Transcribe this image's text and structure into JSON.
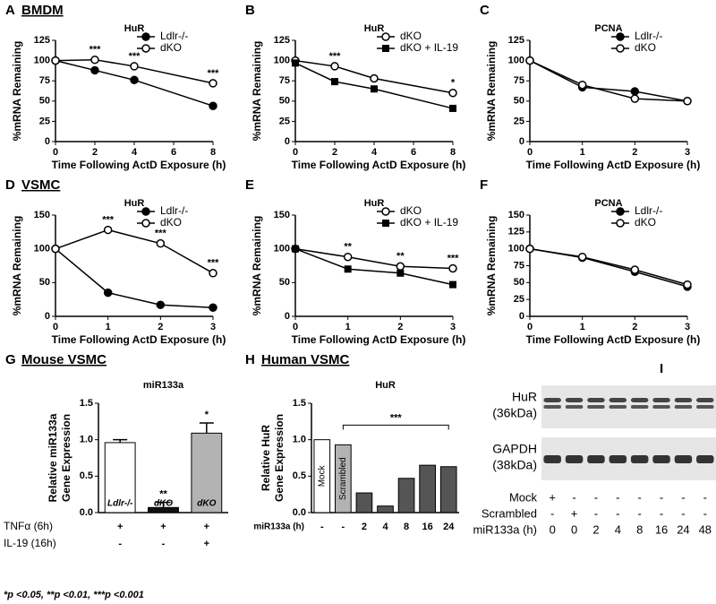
{
  "chart_data": [
    {
      "type": "line",
      "panel": "A",
      "section": "BMDM",
      "title": "HuR",
      "xlabel": "Time Following ActD Exposure (h)",
      "ylabel": "%mRNA Remaining",
      "x": [
        0,
        2,
        4,
        8
      ],
      "xlim": [
        0,
        8
      ],
      "xticks": [
        0,
        2,
        4,
        6,
        8
      ],
      "ylim": [
        0,
        125
      ],
      "yticks": [
        0,
        25,
        50,
        75,
        100,
        125
      ],
      "legend": "top-right",
      "series": [
        {
          "name": "Ldlr-/-",
          "color": "#000000",
          "marker": "circle",
          "values": [
            100,
            88,
            76,
            44
          ]
        },
        {
          "name": "dKO",
          "color": "#000000",
          "marker": "open-circle",
          "values": [
            100,
            101,
            93,
            72
          ]
        }
      ],
      "annotations": [
        {
          "x": 2,
          "text": "***"
        },
        {
          "x": 4,
          "text": "***"
        },
        {
          "x": 8,
          "text": "***"
        }
      ]
    },
    {
      "type": "line",
      "panel": "B",
      "title": "HuR",
      "xlabel": "Time Following ActD Exposure (h)",
      "ylabel": "%mRNA Remaining",
      "x": [
        0,
        2,
        4,
        8
      ],
      "xlim": [
        0,
        8
      ],
      "xticks": [
        0,
        2,
        4,
        6,
        8
      ],
      "ylim": [
        0,
        125
      ],
      "yticks": [
        0,
        25,
        50,
        75,
        100,
        125
      ],
      "legend": "top-right",
      "series": [
        {
          "name": "dKO",
          "color": "#000000",
          "marker": "open-circle",
          "values": [
            100,
            93,
            78,
            60
          ]
        },
        {
          "name": "dKO + IL-19",
          "color": "#000000",
          "marker": "square",
          "values": [
            97,
            74,
            65,
            41
          ]
        }
      ],
      "annotations": [
        {
          "x": 2,
          "text": "***"
        },
        {
          "x": 8,
          "text": "*"
        }
      ]
    },
    {
      "type": "line",
      "panel": "C",
      "title": "PCNA",
      "xlabel": "Time Following ActD Exposure (h)",
      "ylabel": "%mRNA Remaining",
      "x": [
        0,
        1,
        2,
        3
      ],
      "xlim": [
        0,
        3
      ],
      "xticks": [
        0,
        1,
        2,
        3
      ],
      "ylim": [
        0,
        125
      ],
      "yticks": [
        0,
        25,
        50,
        75,
        100,
        125
      ],
      "legend": "top-right",
      "series": [
        {
          "name": "Ldlr-/-",
          "color": "#000000",
          "marker": "circle",
          "values": [
            100,
            67,
            62,
            50
          ]
        },
        {
          "name": "dKO",
          "color": "#000000",
          "marker": "open-circle",
          "values": [
            100,
            70,
            53,
            50
          ]
        }
      ]
    },
    {
      "type": "line",
      "panel": "D",
      "section": "VSMC",
      "title": "HuR",
      "xlabel": "Time Following ActD Exposure (h)",
      "ylabel": "%mRNA Remaining",
      "x": [
        0,
        1,
        2,
        3
      ],
      "xlim": [
        0,
        3
      ],
      "xticks": [
        0,
        1,
        2,
        3
      ],
      "ylim": [
        0,
        150
      ],
      "yticks": [
        0,
        50,
        100,
        150
      ],
      "legend": "top-right",
      "series": [
        {
          "name": "Ldlr-/-",
          "color": "#000000",
          "marker": "circle",
          "values": [
            100,
            35,
            17,
            13
          ]
        },
        {
          "name": "dKO",
          "color": "#000000",
          "marker": "open-circle",
          "values": [
            100,
            128,
            108,
            64
          ]
        }
      ],
      "annotations": [
        {
          "x": 1,
          "text": "***"
        },
        {
          "x": 2,
          "text": "***"
        },
        {
          "x": 3,
          "text": "***"
        }
      ]
    },
    {
      "type": "line",
      "panel": "E",
      "title": "HuR",
      "xlabel": "Time Following ActD Exposure (h)",
      "ylabel": "%mRNA Remaining",
      "x": [
        0,
        1,
        2,
        3
      ],
      "xlim": [
        0,
        3
      ],
      "xticks": [
        0,
        1,
        2,
        3
      ],
      "ylim": [
        0,
        150
      ],
      "yticks": [
        0,
        50,
        100,
        150
      ],
      "legend": "top-right",
      "series": [
        {
          "name": "dKO",
          "color": "#000000",
          "marker": "open-circle",
          "values": [
            100,
            88,
            74,
            71
          ]
        },
        {
          "name": "dKO + IL-19",
          "color": "#000000",
          "marker": "square",
          "values": [
            100,
            70,
            64,
            47
          ]
        }
      ],
      "annotations": [
        {
          "x": 1,
          "text": "**"
        },
        {
          "x": 2,
          "text": "**"
        },
        {
          "x": 3,
          "text": "***"
        }
      ]
    },
    {
      "type": "line",
      "panel": "F",
      "title": "PCNA",
      "xlabel": "Time Following ActD Exposure (h)",
      "ylabel": "%mRNA Remaining",
      "x": [
        0,
        1,
        2,
        3
      ],
      "xlim": [
        0,
        3
      ],
      "xticks": [
        0,
        1,
        2,
        3
      ],
      "ylim": [
        0,
        150
      ],
      "yticks": [
        0,
        25,
        50,
        75,
        100,
        125,
        150
      ],
      "legend": "top-right",
      "series": [
        {
          "name": "Ldlr-/-",
          "color": "#000000",
          "marker": "circle",
          "values": [
            100,
            87,
            66,
            44
          ]
        },
        {
          "name": "dKO",
          "color": "#000000",
          "marker": "open-circle",
          "values": [
            100,
            88,
            69,
            47
          ]
        }
      ]
    },
    {
      "type": "bar",
      "panel": "G",
      "section": "Mouse VSMC",
      "title": "miR133a",
      "ylabel": [
        "Relative miR133a",
        "Gene Expression"
      ],
      "categories": [
        "Ldlr-/-",
        "dKO",
        "dKO"
      ],
      "values": [
        0.96,
        0.07,
        1.09
      ],
      "errors": [
        0.04,
        0.07,
        0.14
      ],
      "colors": [
        "#ffffff",
        "#111111",
        "#b3b3b3"
      ],
      "ylim": [
        0,
        1.5
      ],
      "yticks": [
        {
          "value": 0,
          "label": "0.0"
        },
        {
          "value": 0.5,
          "label": "0.5"
        },
        {
          "value": 1,
          "label": "1.0"
        },
        {
          "value": 1.5,
          "label": "1.5"
        }
      ],
      "annotations": [
        {
          "index": 1,
          "text": "**"
        },
        {
          "index": 2,
          "text": "*"
        }
      ],
      "rows": [
        {
          "label": "TNFα (6h)",
          "values": [
            "+",
            "+",
            "+"
          ]
        },
        {
          "label": "IL-19 (16h)",
          "values": [
            "-",
            "-",
            "+"
          ]
        }
      ],
      "footnote": "*p <0.05, **p <0.01, ***p <0.001"
    },
    {
      "type": "bar",
      "panel": "H",
      "section": "Human VSMC",
      "title": "HuR",
      "ylabel": [
        "Relative HuR",
        "Gene Expression"
      ],
      "categories": [
        "Mock",
        "Scrambled",
        null,
        null,
        null,
        null,
        null
      ],
      "values": [
        1.0,
        0.93,
        0.27,
        0.09,
        0.47,
        0.65,
        0.63
      ],
      "colors": [
        "#ffffff",
        "#b3b3b3",
        "#555555",
        "#555555",
        "#555555",
        "#555555",
        "#555555"
      ],
      "ylim": [
        0,
        1.5
      ],
      "yticks": [
        {
          "value": 0,
          "label": "0.0"
        },
        {
          "value": 0.5,
          "label": "0.5"
        },
        {
          "value": 1,
          "label": "1.0"
        },
        {
          "value": 1.5,
          "label": "1.5"
        }
      ],
      "bracket": {
        "from": 1,
        "to": 6,
        "text": "***"
      },
      "rows": [
        {
          "label": "miR133a (h)",
          "values": [
            "-",
            "-",
            "2",
            "4",
            "8",
            "16",
            "24"
          ]
        }
      ]
    },
    {
      "type": "blot",
      "panel": "I",
      "bands": [
        [
          "HuR",
          "(36kDa)"
        ],
        [
          "GAPDH",
          "(38kDa)"
        ]
      ],
      "rows": [
        {
          "label": "Mock",
          "values": [
            "+",
            "-",
            "-",
            "-",
            "-",
            "-",
            "-",
            "-"
          ]
        },
        {
          "label": "Scrambled",
          "values": [
            "-",
            "+",
            "-",
            "-",
            "-",
            "-",
            "-",
            "-"
          ]
        },
        {
          "label": "miR133a (h)",
          "values": [
            "0",
            "0",
            "2",
            "4",
            "8",
            "16",
            "24",
            "48"
          ]
        }
      ]
    }
  ]
}
